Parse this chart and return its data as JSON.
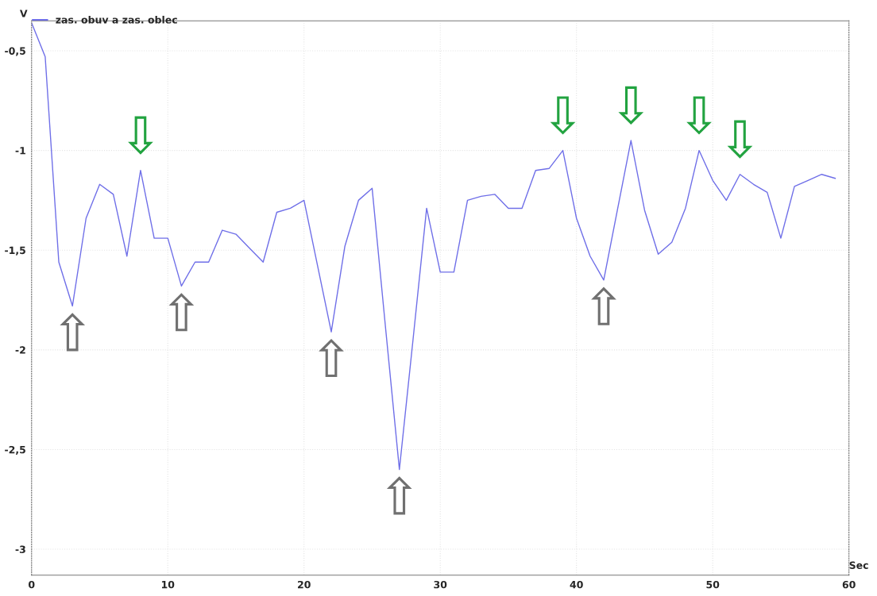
{
  "chart_data": {
    "type": "line",
    "xlabel": "Sec",
    "ylabel": "V",
    "series": [
      {
        "name": "zas. obuv a zas. oblec",
        "color": "#6f6fe8",
        "x": [
          0,
          1,
          2,
          3,
          4,
          5,
          6,
          7,
          8,
          9,
          10,
          11,
          12,
          13,
          14,
          15,
          16,
          17,
          18,
          19,
          20,
          21,
          22,
          23,
          24,
          25,
          26,
          27,
          28,
          29,
          30,
          31,
          32,
          33,
          34,
          35,
          36,
          37,
          38,
          39,
          40,
          41,
          42,
          43,
          44,
          45,
          46,
          47,
          48,
          49,
          50,
          51,
          52,
          53,
          54,
          55,
          56,
          57,
          58,
          59
        ],
        "values": [
          -0.36,
          -0.53,
          -1.56,
          -1.78,
          -1.34,
          -1.17,
          -1.22,
          -1.53,
          -1.1,
          -1.44,
          -1.44,
          -1.68,
          -1.56,
          -1.56,
          -1.4,
          -1.42,
          -1.49,
          -1.56,
          -1.31,
          -1.29,
          -1.25,
          -1.58,
          -1.91,
          -1.48,
          -1.25,
          -1.19,
          -1.9,
          -2.6,
          -1.95,
          -1.29,
          -1.61,
          -1.61,
          -1.25,
          -1.23,
          -1.22,
          -1.29,
          -1.29,
          -1.1,
          -1.09,
          -1.0,
          -1.34,
          -1.53,
          -1.65,
          -1.3,
          -0.95,
          -1.3,
          -1.52,
          -1.46,
          -1.29,
          -1.0,
          -1.15,
          -1.25,
          -1.12,
          -1.17,
          -1.21,
          -1.44,
          -1.18,
          -1.15,
          -1.12,
          -1.14
        ]
      }
    ],
    "xlim": [
      0,
      60
    ],
    "xticks": [
      0,
      10,
      20,
      30,
      40,
      50,
      60
    ],
    "ylim": [
      -3.13,
      -0.35
    ],
    "yticks": [
      {
        "value": -0.5,
        "label": "-0,5"
      },
      -1,
      {
        "value": -1.5,
        "label": "-1,5"
      },
      -2,
      {
        "value": -2.5,
        "label": "-2,5"
      },
      -3
    ],
    "grid": true,
    "legend": "top left",
    "marker": "none",
    "line_style": "solid",
    "annotations": [
      {
        "text": "⇧",
        "x": 3,
        "y": -1.78
      },
      {
        "text": "⇩",
        "x": 8,
        "y": -1.1
      },
      {
        "text": "⇧",
        "x": 11,
        "y": -1.68
      },
      {
        "text": "⇧",
        "x": 22,
        "y": -1.91
      },
      {
        "text": "⇧",
        "x": 27,
        "y": -2.6
      },
      {
        "text": "⇩",
        "x": 39,
        "y": -1.0
      },
      {
        "text": "⇧",
        "x": 42,
        "y": -1.65
      },
      {
        "text": "⇩",
        "x": 44,
        "y": -0.95
      },
      {
        "text": "⇩",
        "x": 49,
        "y": -1.0
      },
      {
        "text": "⇩",
        "x": 52,
        "y": -1.12
      }
    ]
  }
}
